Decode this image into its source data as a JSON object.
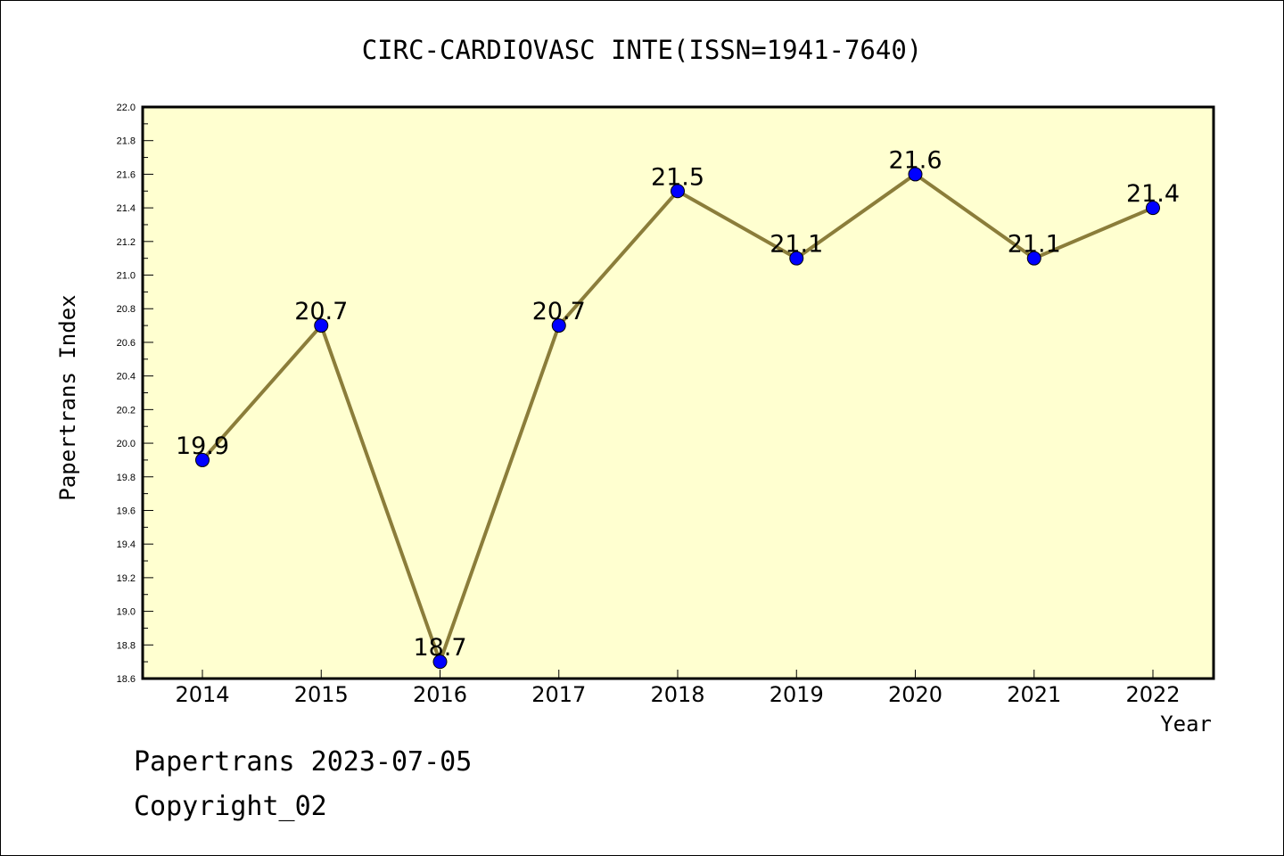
{
  "chart_data": {
    "type": "line",
    "title": "CIRC-CARDIOVASC INTE(ISSN=1941-7640)",
    "xlabel": "Year",
    "ylabel": "Papertrans Index",
    "categories": [
      "2014",
      "2015",
      "2016",
      "2017",
      "2018",
      "2019",
      "2020",
      "2021",
      "2022"
    ],
    "values": [
      19.9,
      20.7,
      18.7,
      20.7,
      21.5,
      21.1,
      21.6,
      21.1,
      21.4
    ],
    "data_labels": [
      "19.9",
      "20.7",
      "18.7",
      "20.7",
      "21.5",
      "21.1",
      "21.6",
      "21.1",
      "21.4"
    ],
    "ylim": [
      18.6,
      22.0
    ],
    "yticks": [
      "18.6",
      "18.8",
      "19.0",
      "19.2",
      "19.4",
      "19.6",
      "19.8",
      "20.0",
      "20.2",
      "20.4",
      "20.6",
      "20.8",
      "21.0",
      "21.2",
      "21.4",
      "21.6",
      "21.8",
      "22.0"
    ],
    "grid": false,
    "colors": {
      "plot_background": "#ffffd0",
      "line": "#8b7d3a",
      "marker": "#0000ff"
    }
  },
  "footer": {
    "line1": "Papertrans 2023-07-05",
    "line2": "Copyright_02"
  }
}
